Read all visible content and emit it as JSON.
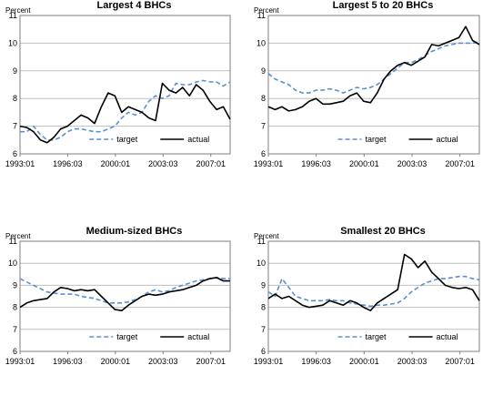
{
  "chart_data": [
    {
      "type": "line",
      "title": "Largest 4 BHCs",
      "ylabel": "Percent",
      "ylim": [
        6,
        11
      ],
      "yticks": [
        "6",
        "7",
        "8",
        "9",
        "10",
        "11"
      ],
      "xticks": [
        "1993:01",
        "1996:03",
        "2000:01",
        "2003:03",
        "2007:01"
      ],
      "xlim": [
        1993.0,
        2008.5
      ],
      "legend": "bottom",
      "grid": "horizontal",
      "x": [
        1993.0,
        1993.5,
        1994.0,
        1994.5,
        1995.0,
        1995.5,
        1996.0,
        1996.5,
        1997.0,
        1997.5,
        1998.0,
        1998.5,
        1999.0,
        1999.5,
        2000.0,
        2000.5,
        2001.0,
        2001.5,
        2002.0,
        2002.5,
        2003.0,
        2003.5,
        2004.0,
        2004.5,
        2005.0,
        2005.5,
        2006.0,
        2006.5,
        2007.0,
        2007.5,
        2008.0,
        2008.5
      ],
      "series": [
        {
          "name": "target",
          "style": "dashed",
          "color": "#5b8fd1",
          "values": [
            6.8,
            6.8,
            7.0,
            6.7,
            6.5,
            6.5,
            6.6,
            6.8,
            6.9,
            6.9,
            6.85,
            6.8,
            6.8,
            6.9,
            7.0,
            7.3,
            7.5,
            7.4,
            7.5,
            7.9,
            8.1,
            8.0,
            8.1,
            8.55,
            8.5,
            8.5,
            8.6,
            8.65,
            8.6,
            8.6,
            8.45,
            8.6
          ]
        },
        {
          "name": "actual",
          "style": "solid",
          "color": "#000000",
          "values": [
            7.0,
            6.95,
            6.8,
            6.5,
            6.4,
            6.6,
            6.9,
            7.0,
            7.2,
            7.4,
            7.3,
            7.1,
            7.7,
            8.2,
            8.1,
            7.5,
            7.7,
            7.6,
            7.5,
            7.3,
            7.2,
            8.55,
            8.3,
            8.2,
            8.4,
            8.1,
            8.5,
            8.3,
            7.9,
            7.6,
            7.7,
            7.25
          ]
        }
      ]
    },
    {
      "type": "line",
      "title": "Largest 5 to 20 BHCs",
      "ylabel": "Percent",
      "ylim": [
        6,
        11
      ],
      "yticks": [
        "6",
        "7",
        "8",
        "9",
        "10",
        "11"
      ],
      "xticks": [
        "1993:01",
        "1996:03",
        "2000:01",
        "2003:03",
        "2007:01"
      ],
      "xlim": [
        1993.0,
        2008.5
      ],
      "legend": "bottom",
      "grid": "horizontal",
      "x": [
        1993.0,
        1993.5,
        1994.0,
        1994.5,
        1995.0,
        1995.5,
        1996.0,
        1996.5,
        1997.0,
        1997.5,
        1998.0,
        1998.5,
        1999.0,
        1999.5,
        2000.0,
        2000.5,
        2001.0,
        2001.5,
        2002.0,
        2002.5,
        2003.0,
        2003.5,
        2004.0,
        2004.5,
        2005.0,
        2005.5,
        2006.0,
        2006.5,
        2007.0,
        2007.5,
        2008.0,
        2008.5
      ],
      "series": [
        {
          "name": "target",
          "style": "dashed",
          "color": "#5b8fd1",
          "values": [
            8.9,
            8.7,
            8.6,
            8.5,
            8.3,
            8.2,
            8.2,
            8.3,
            8.3,
            8.35,
            8.3,
            8.2,
            8.3,
            8.4,
            8.35,
            8.4,
            8.5,
            8.7,
            8.9,
            9.1,
            9.3,
            9.3,
            9.4,
            9.55,
            9.7,
            9.8,
            9.9,
            9.95,
            10.0,
            10.0,
            10.0,
            10.05
          ]
        },
        {
          "name": "actual",
          "style": "solid",
          "color": "#000000",
          "values": [
            7.7,
            7.6,
            7.7,
            7.55,
            7.6,
            7.7,
            7.9,
            8.0,
            7.8,
            7.8,
            7.85,
            7.9,
            8.1,
            8.2,
            7.9,
            7.85,
            8.2,
            8.7,
            9.0,
            9.2,
            9.3,
            9.2,
            9.35,
            9.5,
            9.95,
            9.9,
            10.0,
            10.1,
            10.2,
            10.6,
            10.1,
            9.95
          ]
        }
      ]
    },
    {
      "type": "line",
      "title": "Medium-sized BHCs",
      "ylabel": "Percent",
      "ylim": [
        6,
        11
      ],
      "yticks": [
        "6",
        "7",
        "8",
        "9",
        "10",
        "11"
      ],
      "xticks": [
        "1993:01",
        "1996:03",
        "2000:01",
        "2003:03",
        "2007:01"
      ],
      "xlim": [
        1993.0,
        2008.5
      ],
      "legend": "bottom",
      "grid": "horizontal",
      "x": [
        1993.0,
        1993.5,
        1994.0,
        1994.5,
        1995.0,
        1995.5,
        1996.0,
        1996.5,
        1997.0,
        1997.5,
        1998.0,
        1998.5,
        1999.0,
        1999.5,
        2000.0,
        2000.5,
        2001.0,
        2001.5,
        2002.0,
        2002.5,
        2003.0,
        2003.5,
        2004.0,
        2004.5,
        2005.0,
        2005.5,
        2006.0,
        2006.5,
        2007.0,
        2007.5,
        2008.0,
        2008.5
      ],
      "series": [
        {
          "name": "target",
          "style": "dashed",
          "color": "#5b8fd1",
          "values": [
            9.3,
            9.15,
            9.0,
            8.85,
            8.7,
            8.65,
            8.6,
            8.6,
            8.6,
            8.5,
            8.45,
            8.4,
            8.3,
            8.2,
            8.2,
            8.2,
            8.25,
            8.35,
            8.5,
            8.7,
            8.8,
            8.7,
            8.75,
            8.9,
            9.0,
            9.1,
            9.2,
            9.25,
            9.3,
            9.35,
            9.3,
            9.3
          ]
        },
        {
          "name": "actual",
          "style": "solid",
          "color": "#000000",
          "values": [
            8.0,
            8.2,
            8.3,
            8.35,
            8.4,
            8.7,
            8.9,
            8.85,
            8.75,
            8.8,
            8.75,
            8.8,
            8.5,
            8.2,
            7.9,
            7.85,
            8.1,
            8.3,
            8.5,
            8.6,
            8.55,
            8.6,
            8.7,
            8.75,
            8.8,
            8.9,
            9.0,
            9.2,
            9.3,
            9.35,
            9.2,
            9.2
          ]
        }
      ]
    },
    {
      "type": "line",
      "title": "Smallest 20 BHCs",
      "ylabel": "Percent",
      "ylim": [
        6,
        11
      ],
      "yticks": [
        "6",
        "7",
        "8",
        "9",
        "10",
        "11"
      ],
      "xticks": [
        "1993:01",
        "1996:03",
        "2000:01",
        "2003:03",
        "2007:01"
      ],
      "xlim": [
        1993.0,
        2008.5
      ],
      "legend": "bottom",
      "grid": "horizontal",
      "x": [
        1993.0,
        1993.5,
        1994.0,
        1994.5,
        1995.0,
        1995.5,
        1996.0,
        1996.5,
        1997.0,
        1997.5,
        1998.0,
        1998.5,
        1999.0,
        1999.5,
        2000.0,
        2000.5,
        2001.0,
        2001.5,
        2002.0,
        2002.5,
        2003.0,
        2003.5,
        2004.0,
        2004.5,
        2005.0,
        2005.5,
        2006.0,
        2006.5,
        2007.0,
        2007.5,
        2008.0,
        2008.5
      ],
      "series": [
        {
          "name": "target",
          "style": "dashed",
          "color": "#5b8fd1",
          "values": [
            8.7,
            8.5,
            9.3,
            8.9,
            8.5,
            8.4,
            8.3,
            8.3,
            8.3,
            8.35,
            8.3,
            8.3,
            8.2,
            8.15,
            8.1,
            8.05,
            8.1,
            8.1,
            8.15,
            8.2,
            8.4,
            8.7,
            8.9,
            9.1,
            9.2,
            9.3,
            9.3,
            9.35,
            9.4,
            9.4,
            9.3,
            9.25
          ]
        },
        {
          "name": "actual",
          "style": "solid",
          "color": "#000000",
          "values": [
            8.4,
            8.6,
            8.4,
            8.5,
            8.3,
            8.1,
            8.0,
            8.05,
            8.1,
            8.3,
            8.2,
            8.1,
            8.3,
            8.2,
            8.0,
            7.85,
            8.2,
            8.4,
            8.6,
            8.8,
            10.4,
            10.2,
            9.8,
            10.1,
            9.6,
            9.3,
            9.0,
            8.9,
            8.85,
            8.9,
            8.8,
            8.3
          ]
        }
      ]
    }
  ]
}
